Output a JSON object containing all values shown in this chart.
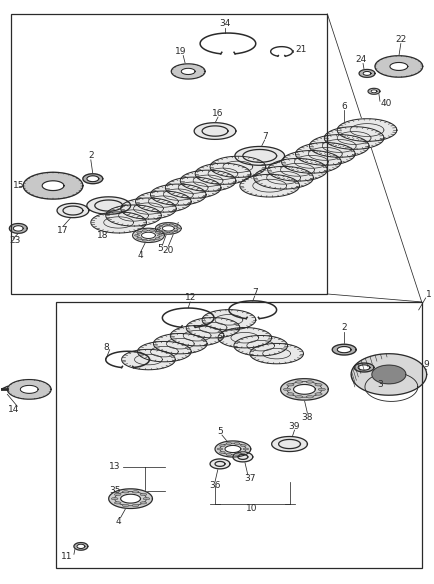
{
  "bg_color": "#ffffff",
  "line_color": "#2a2a2a",
  "part_color": "#2a2a2a",
  "label_color": "#2a2a2a",
  "label_fontsize": 6.5,
  "fig_width": 4.34,
  "fig_height": 5.84,
  "dpi": 100
}
